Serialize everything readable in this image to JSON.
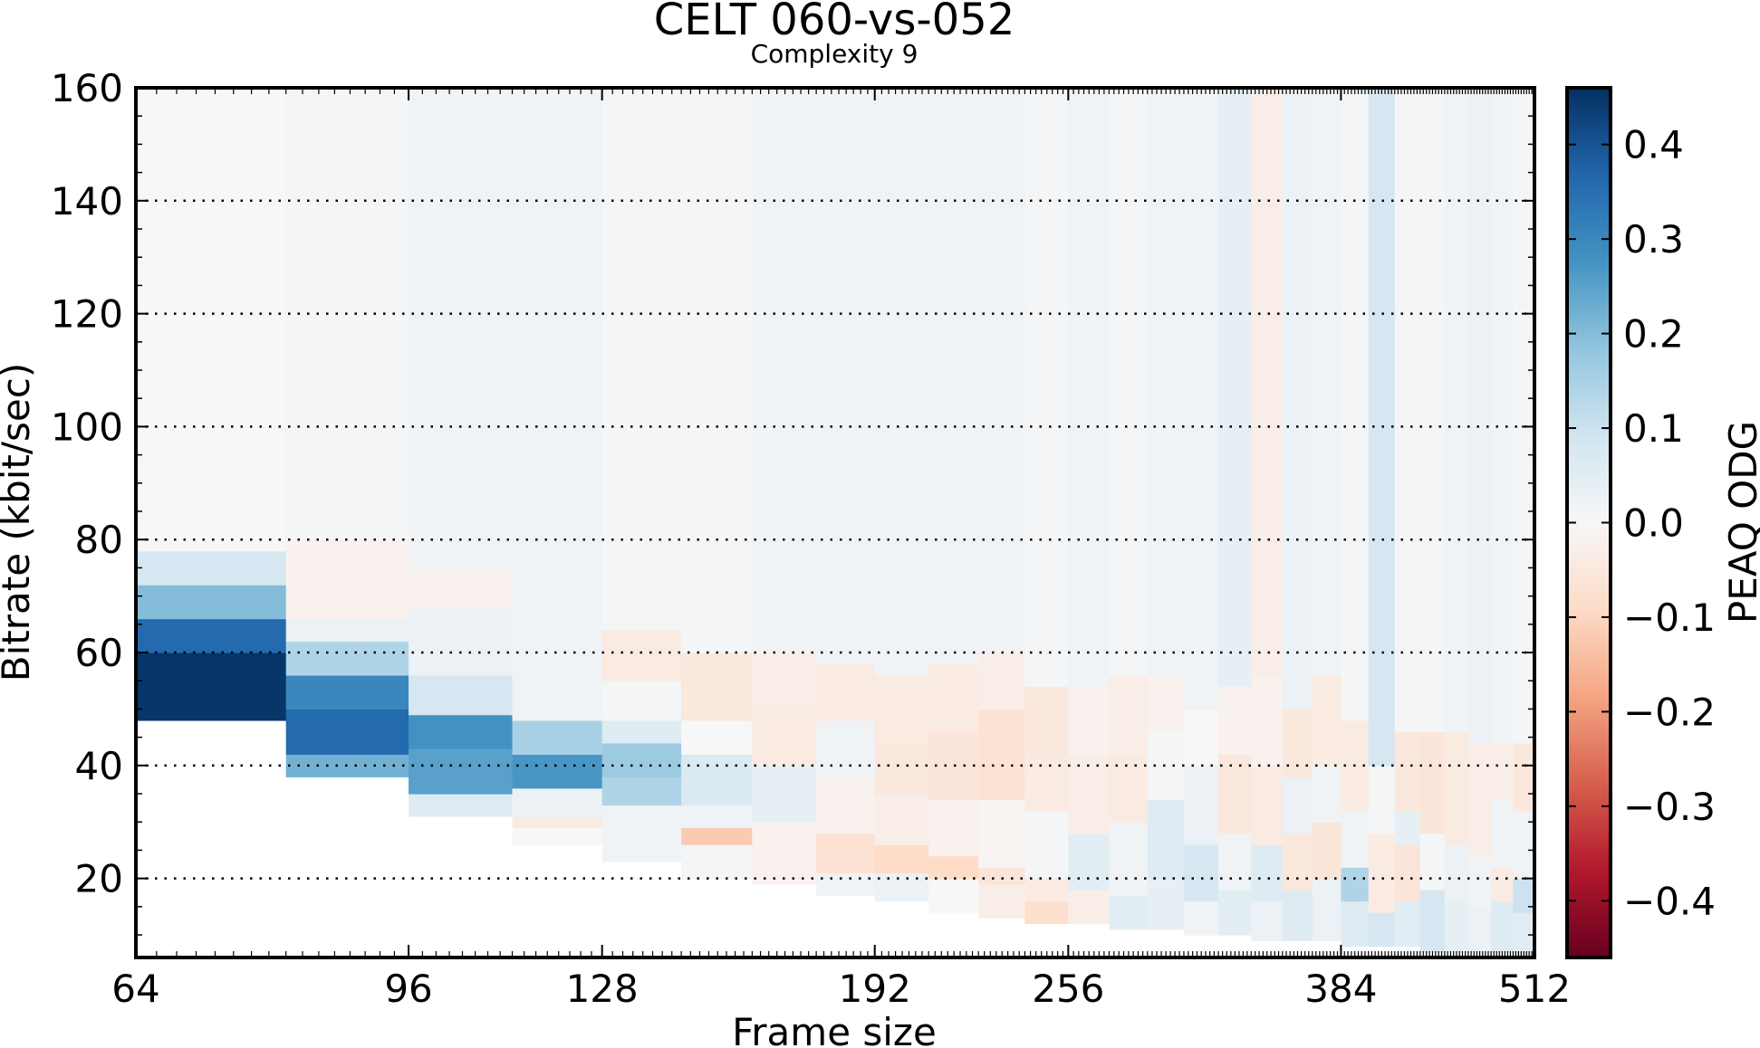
{
  "chart_data": {
    "type": "heatmap",
    "title": "CELT 060-vs-052",
    "subtitle": "Complexity 9",
    "xlabel": "Frame size",
    "ylabel": "Bitrate (kbit/sec)",
    "x_scale": "log2",
    "xlim": [
      64,
      512
    ],
    "ylim": [
      6,
      160
    ],
    "x_ticks": [
      64,
      96,
      128,
      192,
      256,
      384,
      512
    ],
    "x_tick_labels": [
      "64",
      "96",
      "128",
      "192",
      "256",
      "384",
      "512"
    ],
    "y_ticks": [
      20,
      40,
      60,
      80,
      100,
      120,
      140,
      160
    ],
    "y_tick_labels": [
      "20",
      "40",
      "60",
      "80",
      "100",
      "120",
      "140",
      "160"
    ],
    "grid": "dotted horizontal",
    "colorbar": {
      "label": "PEAQ ODG",
      "range": [
        -0.46,
        0.46
      ],
      "ticks": [
        0.4,
        0.3,
        0.2,
        0.1,
        0.0,
        -0.1,
        -0.2,
        -0.3,
        -0.4
      ],
      "tick_labels": [
        "0.4",
        "0.3",
        "0.2",
        "0.1",
        "0.0",
        "−0.1",
        "−0.2",
        "−0.3",
        "−0.4"
      ],
      "colormap": "RdBu",
      "colors": [
        "#67001f",
        "#b2182b",
        "#d6604d",
        "#f4a582",
        "#fddbc7",
        "#f7f7f7",
        "#d1e5f0",
        "#92c5de",
        "#4393c3",
        "#2166ac",
        "#053061"
      ]
    },
    "columns": [
      {
        "x0": 64,
        "x1": 80,
        "min_bitrate": 48,
        "bands": [
          [
            48,
            60,
            0.45
          ],
          [
            60,
            66,
            0.36
          ],
          [
            66,
            72,
            0.2
          ],
          [
            72,
            78,
            0.08
          ],
          [
            78,
            160,
            0.0
          ]
        ]
      },
      {
        "x0": 80,
        "x1": 96,
        "min_bitrate": 38,
        "bands": [
          [
            38,
            42,
            0.22
          ],
          [
            42,
            50,
            0.36
          ],
          [
            50,
            56,
            0.3
          ],
          [
            56,
            62,
            0.14
          ],
          [
            62,
            66,
            0.03
          ],
          [
            66,
            80,
            -0.02
          ],
          [
            80,
            160,
            0.01
          ]
        ]
      },
      {
        "x0": 96,
        "x1": 112,
        "min_bitrate": 31,
        "bands": [
          [
            31,
            35,
            0.06
          ],
          [
            35,
            43,
            0.25
          ],
          [
            43,
            49,
            0.28
          ],
          [
            49,
            56,
            0.08
          ],
          [
            56,
            68,
            0.03
          ],
          [
            68,
            75,
            -0.02
          ],
          [
            75,
            160,
            0.02
          ]
        ]
      },
      {
        "x0": 112,
        "x1": 128,
        "min_bitrate": 26,
        "bands": [
          [
            26,
            29,
            0.0
          ],
          [
            29,
            31,
            -0.04
          ],
          [
            31,
            36,
            0.03
          ],
          [
            36,
            42,
            0.27
          ],
          [
            42,
            48,
            0.15
          ],
          [
            48,
            56,
            0.02
          ],
          [
            56,
            160,
            0.02
          ]
        ]
      },
      {
        "x0": 128,
        "x1": 144,
        "min_bitrate": 23,
        "bands": [
          [
            23,
            33,
            0.02
          ],
          [
            33,
            38,
            0.14
          ],
          [
            38,
            44,
            0.17
          ],
          [
            44,
            48,
            0.06
          ],
          [
            48,
            55,
            0.01
          ],
          [
            55,
            64,
            -0.04
          ],
          [
            64,
            160,
            0.01
          ]
        ]
      },
      {
        "x0": 144,
        "x1": 160,
        "min_bitrate": 20,
        "bands": [
          [
            20,
            26,
            0.01
          ],
          [
            26,
            29,
            -0.12
          ],
          [
            29,
            33,
            0.02
          ],
          [
            33,
            42,
            0.07
          ],
          [
            42,
            48,
            0.0
          ],
          [
            48,
            60,
            -0.05
          ],
          [
            60,
            160,
            0.01
          ]
        ]
      },
      {
        "x0": 160,
        "x1": 176,
        "min_bitrate": 19,
        "bands": [
          [
            19,
            30,
            -0.02
          ],
          [
            30,
            40,
            0.04
          ],
          [
            40,
            50,
            -0.04
          ],
          [
            50,
            60,
            -0.03
          ],
          [
            60,
            160,
            0.02
          ]
        ]
      },
      {
        "x0": 176,
        "x1": 192,
        "min_bitrate": 17,
        "bands": [
          [
            17,
            21,
            0.02
          ],
          [
            21,
            28,
            -0.07
          ],
          [
            28,
            38,
            -0.02
          ],
          [
            38,
            48,
            0.02
          ],
          [
            48,
            58,
            -0.04
          ],
          [
            58,
            160,
            0.02
          ]
        ]
      },
      {
        "x0": 192,
        "x1": 208,
        "min_bitrate": 16,
        "bands": [
          [
            16,
            21,
            0.03
          ],
          [
            21,
            26,
            -0.09
          ],
          [
            26,
            35,
            -0.03
          ],
          [
            35,
            44,
            -0.05
          ],
          [
            44,
            56,
            -0.04
          ],
          [
            56,
            160,
            0.02
          ]
        ]
      },
      {
        "x0": 208,
        "x1": 224,
        "min_bitrate": 14,
        "bands": [
          [
            14,
            20,
            0.0
          ],
          [
            20,
            24,
            -0.09
          ],
          [
            24,
            34,
            -0.02
          ],
          [
            34,
            46,
            -0.06
          ],
          [
            46,
            58,
            -0.04
          ],
          [
            58,
            160,
            0.02
          ]
        ]
      },
      {
        "x0": 224,
        "x1": 240,
        "min_bitrate": 13,
        "bands": [
          [
            13,
            19,
            -0.03
          ],
          [
            19,
            22,
            -0.06
          ],
          [
            22,
            34,
            -0.01
          ],
          [
            34,
            50,
            -0.07
          ],
          [
            50,
            60,
            -0.03
          ],
          [
            60,
            160,
            0.02
          ]
        ]
      },
      {
        "x0": 240,
        "x1": 256,
        "min_bitrate": 12,
        "bands": [
          [
            12,
            16,
            -0.08
          ],
          [
            16,
            20,
            -0.04
          ],
          [
            20,
            32,
            0.01
          ],
          [
            32,
            42,
            -0.04
          ],
          [
            42,
            54,
            -0.05
          ],
          [
            54,
            160,
            0.01
          ]
        ]
      },
      {
        "x0": 256,
        "x1": 272,
        "min_bitrate": 12,
        "bands": [
          [
            12,
            18,
            -0.03
          ],
          [
            18,
            28,
            0.05
          ],
          [
            28,
            42,
            -0.03
          ],
          [
            42,
            54,
            -0.02
          ],
          [
            54,
            160,
            0.02
          ]
        ]
      },
      {
        "x0": 272,
        "x1": 288,
        "min_bitrate": 11,
        "bands": [
          [
            11,
            17,
            0.05
          ],
          [
            17,
            30,
            0.02
          ],
          [
            30,
            42,
            -0.04
          ],
          [
            42,
            56,
            -0.03
          ],
          [
            56,
            160,
            0.01
          ]
        ]
      },
      {
        "x0": 288,
        "x1": 304,
        "min_bitrate": 11,
        "bands": [
          [
            11,
            20,
            0.04
          ],
          [
            20,
            34,
            0.06
          ],
          [
            34,
            46,
            0.01
          ],
          [
            46,
            56,
            -0.02
          ],
          [
            56,
            160,
            0.02
          ]
        ]
      },
      {
        "x0": 304,
        "x1": 320,
        "min_bitrate": 10,
        "bands": [
          [
            10,
            16,
            0.02
          ],
          [
            16,
            26,
            0.08
          ],
          [
            26,
            40,
            0.03
          ],
          [
            40,
            50,
            0.0
          ],
          [
            50,
            160,
            0.02
          ]
        ]
      },
      {
        "x0": 320,
        "x1": 336,
        "min_bitrate": 10,
        "bands": [
          [
            10,
            18,
            0.05
          ],
          [
            18,
            28,
            0.02
          ],
          [
            28,
            42,
            -0.05
          ],
          [
            42,
            54,
            -0.02
          ],
          [
            54,
            160,
            0.04
          ]
        ]
      },
      {
        "x0": 336,
        "x1": 352,
        "min_bitrate": 9,
        "bands": [
          [
            9,
            16,
            0.03
          ],
          [
            16,
            26,
            0.06
          ],
          [
            26,
            40,
            -0.04
          ],
          [
            40,
            56,
            -0.02
          ],
          [
            56,
            160,
            -0.03
          ]
        ]
      },
      {
        "x0": 352,
        "x1": 368,
        "min_bitrate": 9,
        "bands": [
          [
            9,
            18,
            0.06
          ],
          [
            18,
            28,
            -0.05
          ],
          [
            28,
            38,
            0.03
          ],
          [
            38,
            50,
            -0.05
          ],
          [
            50,
            160,
            0.03
          ]
        ]
      },
      {
        "x0": 368,
        "x1": 384,
        "min_bitrate": 9,
        "bands": [
          [
            9,
            20,
            0.03
          ],
          [
            20,
            30,
            -0.06
          ],
          [
            30,
            40,
            0.02
          ],
          [
            40,
            56,
            -0.04
          ],
          [
            56,
            160,
            0.02
          ]
        ]
      },
      {
        "x0": 384,
        "x1": 400,
        "min_bitrate": 8,
        "bands": [
          [
            8,
            16,
            0.06
          ],
          [
            16,
            22,
            0.14
          ],
          [
            22,
            32,
            0.02
          ],
          [
            32,
            48,
            -0.04
          ],
          [
            48,
            160,
            0.01
          ]
        ]
      },
      {
        "x0": 400,
        "x1": 416,
        "min_bitrate": 8,
        "bands": [
          [
            8,
            14,
            0.08
          ],
          [
            14,
            28,
            -0.04
          ],
          [
            28,
            40,
            0.01
          ],
          [
            40,
            160,
            0.08
          ]
        ]
      },
      {
        "x0": 416,
        "x1": 432,
        "min_bitrate": 8,
        "bands": [
          [
            8,
            16,
            0.05
          ],
          [
            16,
            26,
            -0.06
          ],
          [
            26,
            32,
            0.04
          ],
          [
            32,
            46,
            -0.05
          ],
          [
            46,
            160,
            0.01
          ]
        ]
      },
      {
        "x0": 432,
        "x1": 448,
        "min_bitrate": 7,
        "bands": [
          [
            7,
            18,
            0.08
          ],
          [
            18,
            28,
            0.01
          ],
          [
            28,
            46,
            -0.06
          ],
          [
            46,
            160,
            0.01
          ]
        ]
      },
      {
        "x0": 448,
        "x1": 464,
        "min_bitrate": 7,
        "bands": [
          [
            7,
            16,
            0.04
          ],
          [
            16,
            26,
            0.03
          ],
          [
            26,
            46,
            -0.04
          ],
          [
            46,
            160,
            0.02
          ]
        ]
      },
      {
        "x0": 464,
        "x1": 480,
        "min_bitrate": 7,
        "bands": [
          [
            7,
            15,
            0.03
          ],
          [
            15,
            24,
            0.02
          ],
          [
            24,
            44,
            -0.03
          ],
          [
            44,
            160,
            0.03
          ]
        ]
      },
      {
        "x0": 480,
        "x1": 496,
        "min_bitrate": 7,
        "bands": [
          [
            7,
            16,
            0.06
          ],
          [
            16,
            22,
            -0.04
          ],
          [
            22,
            34,
            0.02
          ],
          [
            34,
            44,
            -0.03
          ],
          [
            44,
            160,
            0.02
          ]
        ]
      },
      {
        "x0": 496,
        "x1": 512,
        "min_bitrate": 6,
        "bands": [
          [
            6,
            14,
            0.05
          ],
          [
            14,
            20,
            0.1
          ],
          [
            20,
            32,
            0.02
          ],
          [
            32,
            44,
            -0.05
          ],
          [
            44,
            160,
            0.01
          ]
        ]
      }
    ]
  }
}
